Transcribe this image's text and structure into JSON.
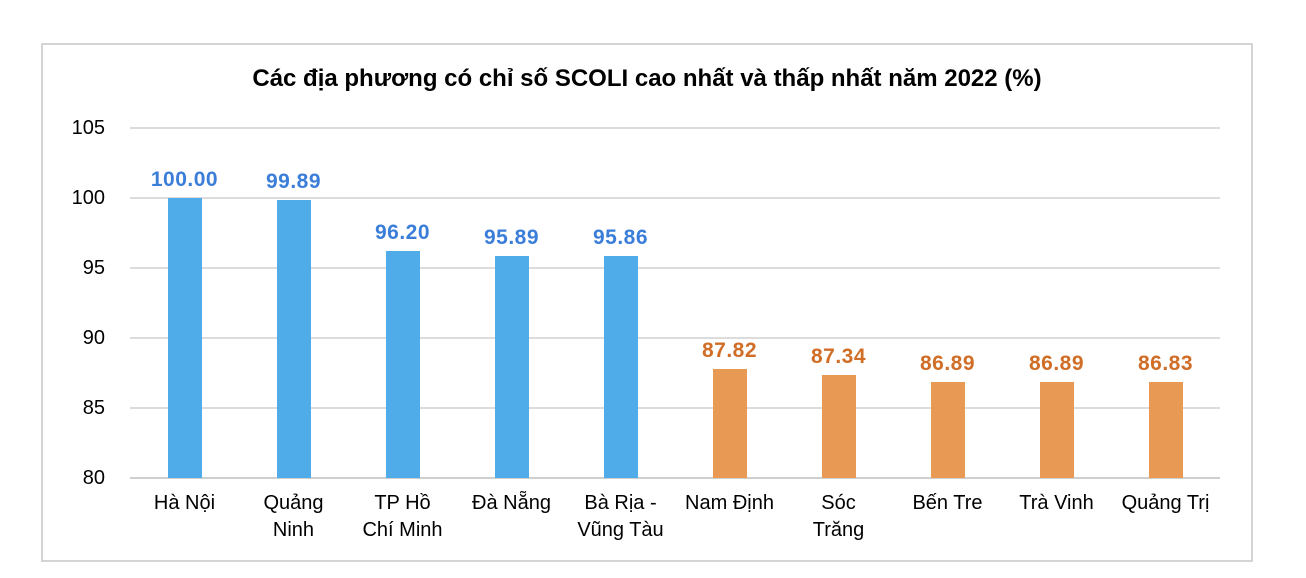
{
  "chart_data": {
    "type": "bar",
    "title": "Các địa phương có chỉ số SCOLI cao nhất và thấp nhất năm 2022 (%)",
    "categories": [
      "Hà Nội",
      "Quảng Ninh",
      "TP Hồ Chí Minh",
      "Đà Nẵng",
      "Bà Rịa - Vũng Tàu",
      "Nam Định",
      "Sóc Trăng",
      "Bến Tre",
      "Trà Vinh",
      "Quảng Trị"
    ],
    "categories_display": [
      "Hà Nội",
      "Quảng\nNinh",
      "TP Hồ\nChí Minh",
      "Đà Nẵng",
      "Bà Rịa -\nVũng Tàu",
      "Nam Định",
      "Sóc\nTrăng",
      "Bến Tre",
      "Trà Vinh",
      "Quảng Trị"
    ],
    "values": [
      100.0,
      99.89,
      96.2,
      95.89,
      95.86,
      87.82,
      87.34,
      86.89,
      86.89,
      86.83
    ],
    "value_labels": [
      "100.00",
      "99.89",
      "96.20",
      "95.89",
      "95.86",
      "87.82",
      "87.34",
      "86.89",
      "86.89",
      "86.83"
    ],
    "bar_colors": [
      "#4face9",
      "#4face9",
      "#4face9",
      "#4face9",
      "#4face9",
      "#e89a54",
      "#e89a54",
      "#e89a54",
      "#e89a54",
      "#e89a54"
    ],
    "label_colors": [
      "#3b7ed9",
      "#3b7ed9",
      "#3b7ed9",
      "#3b7ed9",
      "#3b7ed9",
      "#d06e28",
      "#d06e28",
      "#d06e28",
      "#d06e28",
      "#d06e28"
    ],
    "xlabel": "",
    "ylabel": "",
    "ylim": [
      80,
      105
    ],
    "y_axis": {
      "min": 80,
      "max": 105,
      "step": 5,
      "ticks": [
        "80",
        "85",
        "90",
        "95",
        "100",
        "105"
      ]
    },
    "grid": true,
    "legend_position": "none"
  }
}
